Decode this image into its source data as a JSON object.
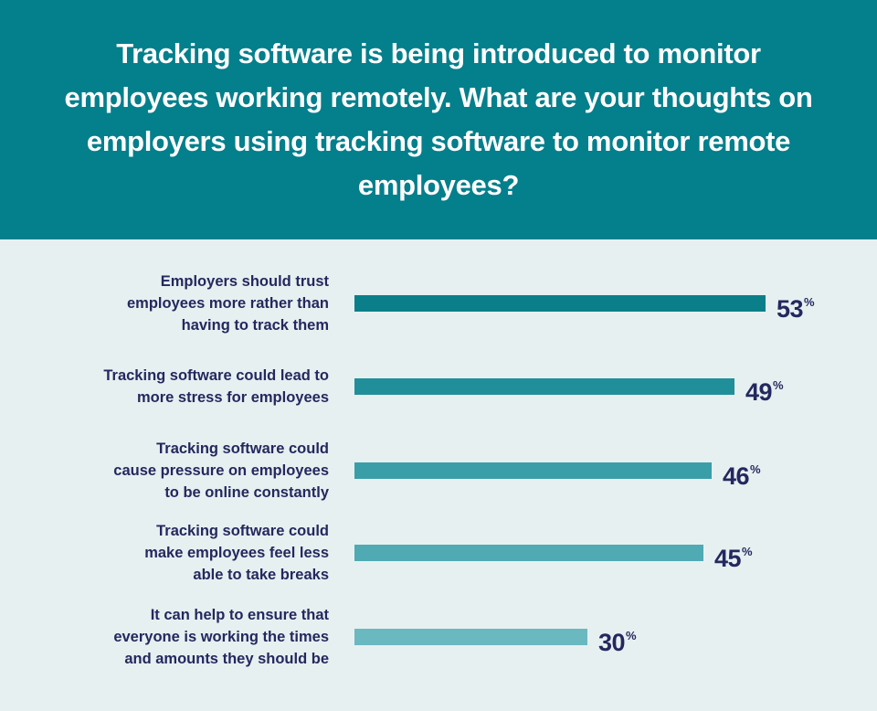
{
  "chart_data": {
    "type": "bar",
    "orientation": "horizontal",
    "title": "Tracking software is being introduced to monitor employees working remotely. What are your thoughts on employers using tracking software to monitor remote employees?",
    "categories": [
      "Employers should trust\nemployees more rather than\nhaving to track them",
      "Tracking software could lead to\nmore stress for employees",
      "Tracking software could\ncause pressure on employees\nto be online constantly",
      "Tracking software could\nmake employees feel less\nable to take breaks",
      "It can help to ensure that\neveryone is working the times\nand amounts they should be"
    ],
    "values": [
      53,
      49,
      46,
      45,
      30
    ],
    "value_labels": [
      "53",
      "49",
      "46",
      "45",
      "30"
    ],
    "unit": "%",
    "colors": [
      "#0a7f8a",
      "#218f99",
      "#3a9ea8",
      "#4faab3",
      "#6ab8c0"
    ],
    "xlim": [
      0,
      53
    ],
    "grid": false,
    "legend": "none"
  },
  "theme": {
    "header_bg": "#047f8c",
    "plot_bg": "#e6f0f1",
    "text": "#24285e"
  }
}
